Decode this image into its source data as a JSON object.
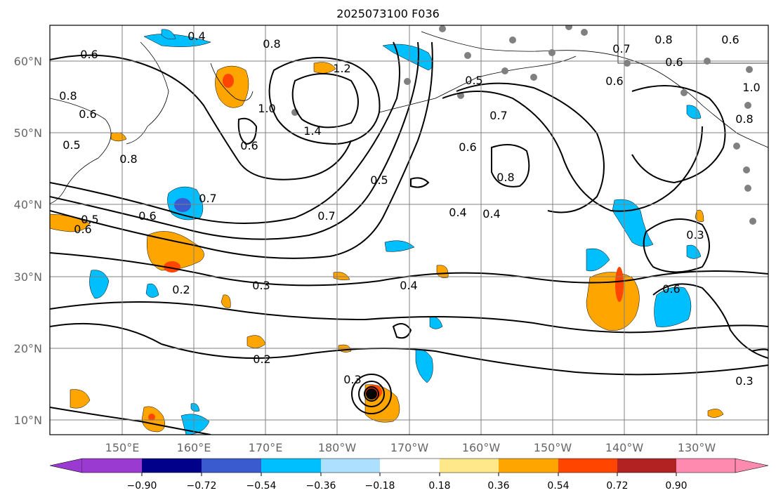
{
  "title": "2025073100 F036",
  "map": {
    "lat_labels": [
      "60°N",
      "50°N",
      "40°N",
      "30°N",
      "20°N",
      "10°N"
    ],
    "lon_labels": [
      "150°E",
      "160°E",
      "170°E",
      "180°W",
      "170°W",
      "160°W",
      "150°W",
      "140°W",
      "130°W"
    ]
  },
  "contour_labels": [
    "0.4",
    "0.6",
    "0.8",
    "0.8",
    "0.6",
    "0.6",
    "0.7",
    "0.8",
    "0.6",
    "1.2",
    "1.0",
    "1.4",
    "0.6",
    "0.8",
    "0.5",
    "0.6",
    "0.7",
    "0.5",
    "0.7",
    "0.6",
    "0.7",
    "0.8",
    "0.6",
    "0.4",
    "0.4",
    "0.3",
    "0.6",
    "0.2",
    "0.3",
    "0.4",
    "0.2",
    "0.3",
    "0.3",
    "1.0",
    "0.8",
    "0.6",
    "0.5",
    "0.5"
  ],
  "colorbar": {
    "ticks": [
      "−0.90",
      "−0.72",
      "−0.54",
      "−0.36",
      "−0.18",
      "0.18",
      "0.36",
      "0.54",
      "0.72",
      "0.90"
    ],
    "colors": [
      "#9a3ad0",
      "#00008b",
      "#3a5ad0",
      "#00bfff",
      "#ade0ff",
      "#ffffff",
      "#ffe88a",
      "#ffa500",
      "#ff4500",
      "#b22222",
      "#ff8ab0"
    ]
  }
}
